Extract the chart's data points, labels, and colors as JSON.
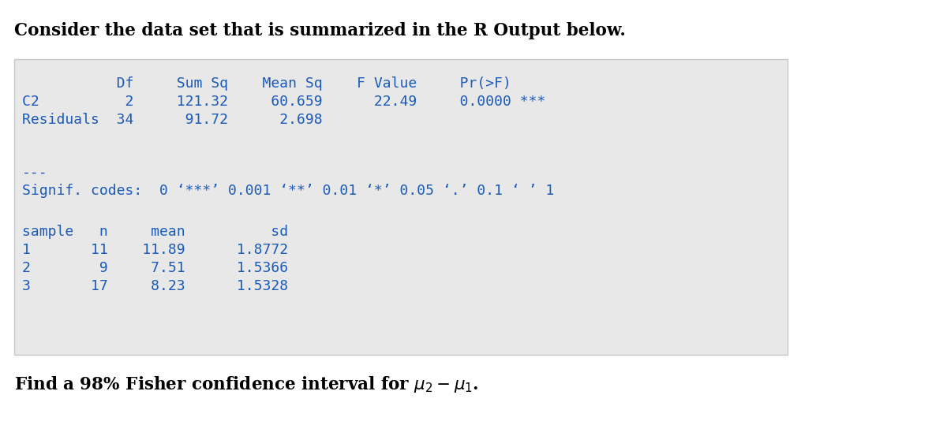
{
  "title": "Consider the data set that is summarized in the R Output below.",
  "title_fontsize": 15.5,
  "title_color": "#000000",
  "footer_text_plain": "Find a 98% Fisher confidence interval for ",
  "footer_math": "$\\mu_2 - \\mu_1$.",
  "footer_fontsize": 15.5,
  "footer_color": "#000000",
  "box_bg": "#e8e8e8",
  "box_edge": "#c8c8c8",
  "code_color": "#1a5ab8",
  "code_fontsize": 13.0,
  "lines": [
    "           Df     Sum Sq    Mean Sq    F Value     Pr(>F)  ",
    "C2          2     121.32     60.659      22.49     0.0000 ***",
    "Residuals  34      91.72      2.698",
    "",
    "",
    "---",
    "Signif. codes:  0 ‘***’ 0.001 ‘**’ 0.01 ‘*’ 0.05 ‘.’ 0.1 ‘ ’ 1",
    "",
    "sample   n     mean          sd",
    "1       11    11.89      1.8772",
    "2        9     7.51      1.5366",
    "3       17     8.23      1.5328"
  ]
}
